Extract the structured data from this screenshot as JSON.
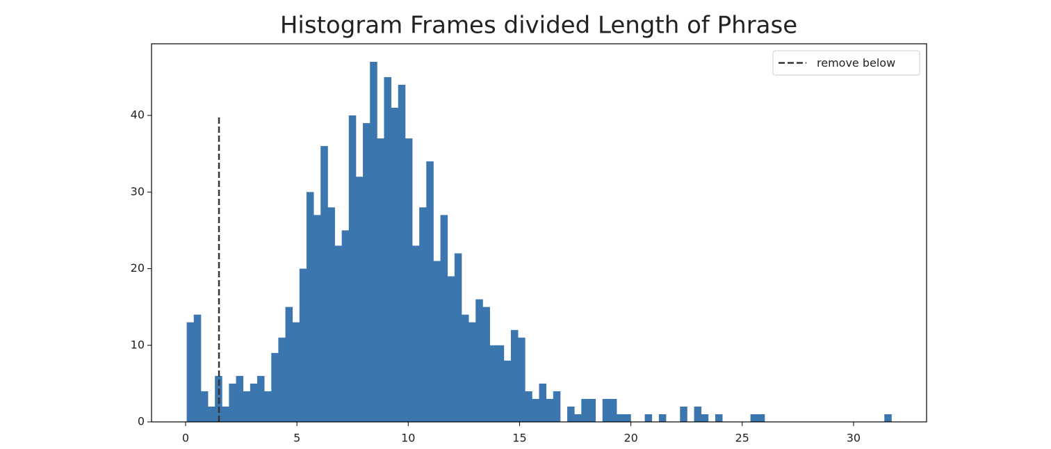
{
  "chart_data": {
    "type": "histogram",
    "title": "Histogram Frames divided Length of Phrase",
    "bins": [
      0.05,
      0.3665,
      0.683,
      0.9995,
      1.316,
      1.6325,
      1.949,
      2.2655,
      2.582,
      2.8985,
      3.215,
      3.5315,
      3.848,
      4.1645,
      4.481,
      4.7975,
      5.114,
      5.4305,
      5.747,
      6.0635,
      6.38,
      6.6965,
      7.013,
      7.3295,
      7.646,
      7.9625,
      8.279,
      8.5955,
      8.912,
      9.2285,
      9.545,
      9.8615,
      10.178,
      10.4945,
      10.811,
      11.1275,
      11.444,
      11.7605,
      12.077,
      12.3935,
      12.71,
      13.0265,
      13.343,
      13.6595,
      13.976,
      14.2925,
      14.609,
      14.9255,
      15.242,
      15.5585,
      15.875,
      16.1915,
      16.508,
      16.8245,
      17.141,
      17.4575,
      17.774,
      18.0905,
      18.407,
      18.7235,
      19.04,
      19.3565,
      19.673,
      19.9895,
      20.306,
      20.6225,
      20.939,
      21.2555,
      21.572,
      21.8885,
      22.205,
      22.5215,
      22.838,
      23.1545,
      23.471,
      23.7875,
      24.104,
      24.4205,
      24.737,
      25.0535,
      25.37,
      25.6865,
      26.003,
      26.3195,
      26.636,
      26.9525,
      27.269,
      27.5855,
      27.902,
      28.2185,
      28.535,
      28.8515,
      29.168,
      29.4845,
      29.801,
      30.1175,
      30.434,
      30.7505,
      31.067,
      31.3835,
      31.7
    ],
    "counts": [
      13,
      14,
      4,
      2,
      6,
      2,
      5,
      6,
      4,
      5,
      6,
      4,
      9,
      11,
      15,
      13,
      20,
      30,
      27,
      36,
      28,
      23,
      25,
      40,
      32,
      39,
      47,
      37,
      45,
      41,
      44,
      37,
      23,
      28,
      34,
      21,
      27,
      19,
      22,
      14,
      13,
      16,
      15,
      10,
      10,
      8,
      12,
      11,
      4,
      3,
      5,
      3,
      4,
      0,
      2,
      1,
      3,
      3,
      0,
      3,
      3,
      1,
      1,
      0,
      0,
      1,
      0,
      1,
      0,
      0,
      2,
      0,
      2,
      1,
      0,
      1,
      0,
      0,
      0,
      0,
      1,
      1,
      0,
      0,
      0,
      0,
      0,
      0,
      0,
      0,
      0,
      0,
      0,
      0,
      0,
      0,
      0,
      0,
      0,
      1
    ],
    "color": "#3b76ae",
    "vline": {
      "x": 1.5,
      "ymin": 0,
      "ymax": 40,
      "label": "remove below",
      "color": "#333333"
    },
    "legend": "upper right",
    "xlim": [
      -1.53,
      33.28
    ],
    "xticks": [
      0,
      5,
      10,
      15,
      20,
      25,
      30
    ],
    "ylim": [
      0,
      49.35
    ],
    "yticks": [
      0,
      10,
      20,
      30,
      40
    ],
    "grid": false
  }
}
